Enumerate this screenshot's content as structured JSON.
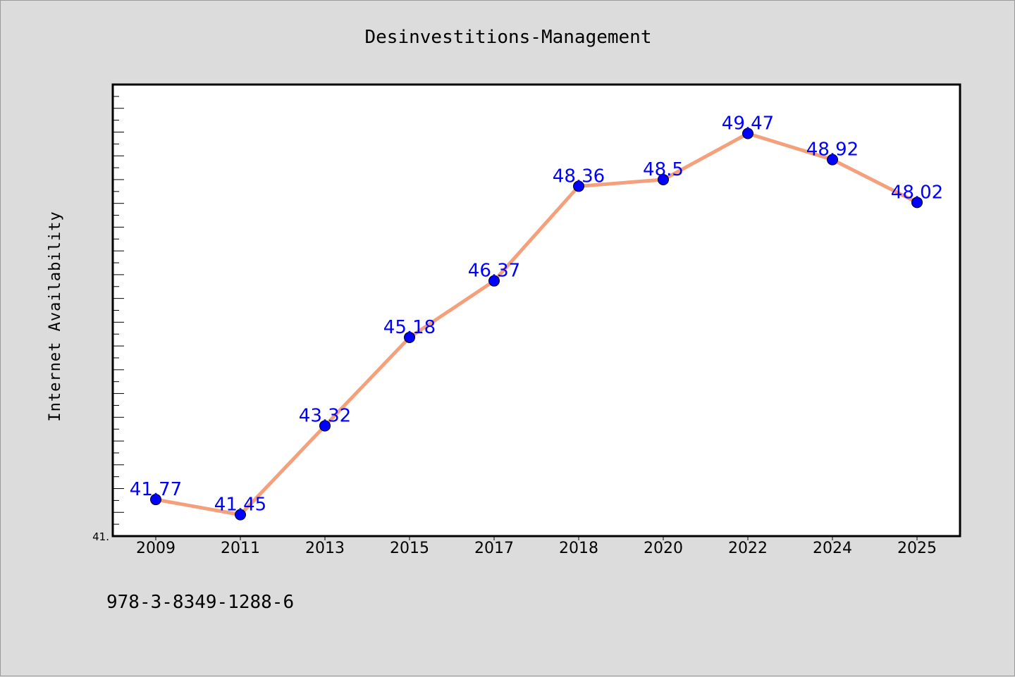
{
  "chart_data": {
    "type": "line",
    "title": "Desinvestitions-Management",
    "xlabel": "",
    "ylabel": "Internet Availability",
    "categories": [
      "2009",
      "2011",
      "2013",
      "2015",
      "2017",
      "2018",
      "2020",
      "2022",
      "2024",
      "2025"
    ],
    "series": [
      {
        "values": [
          41.77,
          41.45,
          43.32,
          45.18,
          46.37,
          48.36,
          48.5,
          49.47,
          48.92,
          48.02
        ],
        "labels": [
          "41.77",
          "41.45",
          "43.32",
          "45.18",
          "46.37",
          "48.36",
          "48.5",
          "49.47",
          "48.92",
          "48.02"
        ]
      }
    ],
    "ylim": [
      41.0,
      50.5
    ],
    "y_visible_tick_label": "41.",
    "grid": false,
    "line_color": "#f4a07c",
    "marker_color": "#0000ff",
    "label_color": "#0000ff"
  },
  "footer": {
    "isbn": "978-3-8349-1288-6"
  }
}
